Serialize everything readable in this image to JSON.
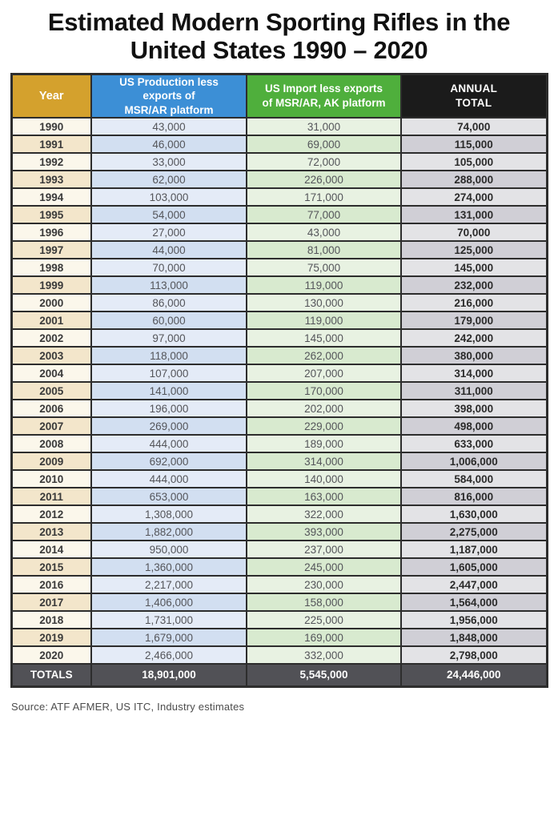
{
  "title_lines": [
    "Estimated Modern Sporting Rifles in the",
    "United States 1990 – 2020"
  ],
  "table": {
    "columns": [
      {
        "id": "year",
        "label_lines": [
          "Year"
        ]
      },
      {
        "id": "prod",
        "label_lines": [
          "US Production less",
          "exports of",
          "MSR/AR platform"
        ]
      },
      {
        "id": "imp",
        "label_lines": [
          "US Import less exports",
          "of MSR/AR, AK platform"
        ]
      },
      {
        "id": "total",
        "label_lines": [
          "ANNUAL",
          "TOTAL"
        ]
      }
    ],
    "rows": [
      {
        "year": "1990",
        "production": "43,000",
        "imports": "31,000",
        "total": "74,000"
      },
      {
        "year": "1991",
        "production": "46,000",
        "imports": "69,000",
        "total": "115,000"
      },
      {
        "year": "1992",
        "production": "33,000",
        "imports": "72,000",
        "total": "105,000"
      },
      {
        "year": "1993",
        "production": "62,000",
        "imports": "226,000",
        "total": "288,000"
      },
      {
        "year": "1994",
        "production": "103,000",
        "imports": "171,000",
        "total": "274,000"
      },
      {
        "year": "1995",
        "production": "54,000",
        "imports": "77,000",
        "total": "131,000"
      },
      {
        "year": "1996",
        "production": "27,000",
        "imports": "43,000",
        "total": "70,000"
      },
      {
        "year": "1997",
        "production": "44,000",
        "imports": "81,000",
        "total": "125,000"
      },
      {
        "year": "1998",
        "production": "70,000",
        "imports": "75,000",
        "total": "145,000"
      },
      {
        "year": "1999",
        "production": "113,000",
        "imports": "119,000",
        "total": "232,000"
      },
      {
        "year": "2000",
        "production": "86,000",
        "imports": "130,000",
        "total": "216,000"
      },
      {
        "year": "2001",
        "production": "60,000",
        "imports": "119,000",
        "total": "179,000"
      },
      {
        "year": "2002",
        "production": "97,000",
        "imports": "145,000",
        "total": "242,000"
      },
      {
        "year": "2003",
        "production": "118,000",
        "imports": "262,000",
        "total": "380,000"
      },
      {
        "year": "2004",
        "production": "107,000",
        "imports": "207,000",
        "total": "314,000"
      },
      {
        "year": "2005",
        "production": "141,000",
        "imports": "170,000",
        "total": "311,000"
      },
      {
        "year": "2006",
        "production": "196,000",
        "imports": "202,000",
        "total": "398,000"
      },
      {
        "year": "2007",
        "production": "269,000",
        "imports": "229,000",
        "total": "498,000"
      },
      {
        "year": "2008",
        "production": "444,000",
        "imports": "189,000",
        "total": "633,000"
      },
      {
        "year": "2009",
        "production": "692,000",
        "imports": "314,000",
        "total": "1,006,000"
      },
      {
        "year": "2010",
        "production": "444,000",
        "imports": "140,000",
        "total": "584,000"
      },
      {
        "year": "2011",
        "production": "653,000",
        "imports": "163,000",
        "total": "816,000"
      },
      {
        "year": "2012",
        "production": "1,308,000",
        "imports": "322,000",
        "total": "1,630,000"
      },
      {
        "year": "2013",
        "production": "1,882,000",
        "imports": "393,000",
        "total": "2,275,000"
      },
      {
        "year": "2014",
        "production": "950,000",
        "imports": "237,000",
        "total": "1,187,000"
      },
      {
        "year": "2015",
        "production": "1,360,000",
        "imports": "245,000",
        "total": "1,605,000"
      },
      {
        "year": "2016",
        "production": "2,217,000",
        "imports": "230,000",
        "total": "2,447,000"
      },
      {
        "year": "2017",
        "production": "1,406,000",
        "imports": "158,000",
        "total": "1,564,000"
      },
      {
        "year": "2018",
        "production": "1,731,000",
        "imports": "225,000",
        "total": "1,956,000"
      },
      {
        "year": "2019",
        "production": "1,679,000",
        "imports": "169,000",
        "total": "1,848,000"
      },
      {
        "year": "2020",
        "production": "2,466,000",
        "imports": "332,000",
        "total": "2,798,000"
      }
    ],
    "totals": {
      "label": "TOTALS",
      "production": "18,901,000",
      "imports": "5,545,000",
      "total": "24,446,000"
    }
  },
  "source": "Source: ATF AFMER, US ITC, Industry estimates",
  "colors": {
    "title_text": "#111111",
    "header_year_bg": "#D4A12D",
    "header_production_bg": "#3C8FD6",
    "header_import_bg": "#4FAF3C",
    "header_total_bg": "#1B1B1B",
    "header_text": "#FFFFFF",
    "row_year_light": "#FBF7EB",
    "row_year_dark": "#F3E6CB",
    "row_production_light": "#E4EBF7",
    "row_production_dark": "#D2DFF1",
    "row_import_light": "#E8F2E2",
    "row_import_dark": "#D8EACF",
    "row_total_light": "#E3E3E6",
    "row_total_dark": "#D0CFD6",
    "totals_bg": "#515156",
    "border": "#2D2D2D",
    "source_text": "#4C4C4C"
  },
  "chart_data": {
    "type": "table",
    "title": "Estimated Modern Sporting Rifles in the United States 1990 – 2020",
    "columns": [
      "Year",
      "US Production less exports of MSR/AR platform",
      "US Import less exports of MSR/AR, AK platform",
      "ANNUAL TOTAL"
    ],
    "rows": [
      [
        1990,
        43000,
        31000,
        74000
      ],
      [
        1991,
        46000,
        69000,
        115000
      ],
      [
        1992,
        33000,
        72000,
        105000
      ],
      [
        1993,
        62000,
        226000,
        288000
      ],
      [
        1994,
        103000,
        171000,
        274000
      ],
      [
        1995,
        54000,
        77000,
        131000
      ],
      [
        1996,
        27000,
        43000,
        70000
      ],
      [
        1997,
        44000,
        81000,
        125000
      ],
      [
        1998,
        70000,
        75000,
        145000
      ],
      [
        1999,
        113000,
        119000,
        232000
      ],
      [
        2000,
        86000,
        130000,
        216000
      ],
      [
        2001,
        60000,
        119000,
        179000
      ],
      [
        2002,
        97000,
        145000,
        242000
      ],
      [
        2003,
        118000,
        262000,
        380000
      ],
      [
        2004,
        107000,
        207000,
        314000
      ],
      [
        2005,
        141000,
        170000,
        311000
      ],
      [
        2006,
        196000,
        202000,
        398000
      ],
      [
        2007,
        269000,
        229000,
        498000
      ],
      [
        2008,
        444000,
        189000,
        633000
      ],
      [
        2009,
        692000,
        314000,
        1006000
      ],
      [
        2010,
        444000,
        140000,
        584000
      ],
      [
        2011,
        653000,
        163000,
        816000
      ],
      [
        2012,
        1308000,
        322000,
        1630000
      ],
      [
        2013,
        1882000,
        393000,
        2275000
      ],
      [
        2014,
        950000,
        237000,
        1187000
      ],
      [
        2015,
        1360000,
        245000,
        1605000
      ],
      [
        2016,
        2217000,
        230000,
        2447000
      ],
      [
        2017,
        1406000,
        158000,
        1564000
      ],
      [
        2018,
        1731000,
        225000,
        1956000
      ],
      [
        2019,
        1679000,
        169000,
        1848000
      ],
      [
        2020,
        2466000,
        332000,
        2798000
      ]
    ],
    "totals": {
      "label": "TOTALS",
      "production": 18901000,
      "imports": 5545000,
      "annual_total": 24446000
    },
    "source": "Source: ATF AFMER, US ITC, Industry estimates"
  }
}
